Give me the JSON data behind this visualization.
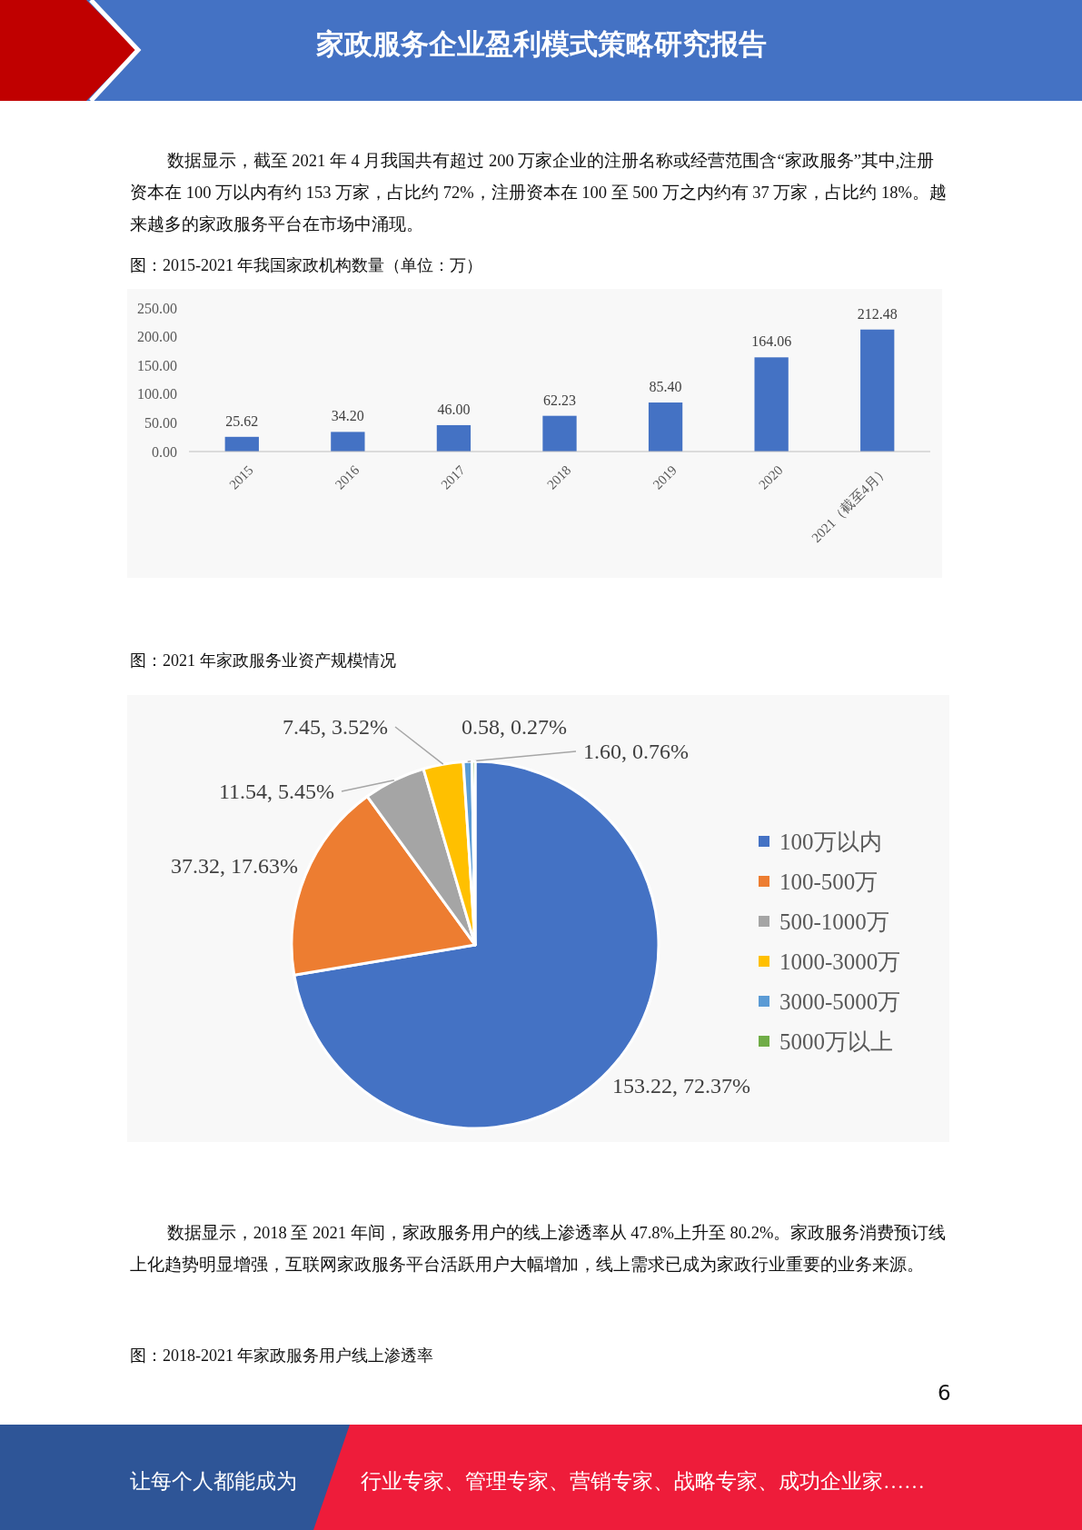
{
  "chart_data": [
    {
      "type": "bar",
      "title": "图：2015-2021 年我国家政机构数量（单位：万）",
      "annotations": [
        "家政服务企业盈利模式策略研究报告",
        "数据显示，截至 2021 年 4 月我国共有超过 200 万家企业的注册名称或经营范围含“家政服务”其中,注册资本在 100 万以内有约 153 万家，占比约 72%，注册资本在 100 至 500 万之内约有 37 万家，占比约 18%。越来越多的家政服务平台在市场中涌现。"
      ],
      "categories": [
        "2015",
        "2016",
        "2017",
        "2018",
        "2019",
        "2020",
        "2021（截至4月）"
      ],
      "values": [
        25.62,
        34.2,
        46.0,
        62.23,
        85.4,
        164.06,
        212.48
      ],
      "color": "#4472c4",
      "value_labels": [
        "25.62",
        "34.20",
        "46.00",
        "62.23",
        "85.40",
        "164.06",
        "212.48"
      ],
      "ylim": [
        0,
        250
      ],
      "yticks": [
        {
          "value": 0,
          "label": "0.00"
        },
        {
          "value": 50,
          "label": "50.00"
        },
        {
          "value": 100,
          "label": "100.00"
        },
        {
          "value": 150,
          "label": "150.00"
        },
        {
          "value": 200,
          "label": "200.00"
        },
        {
          "value": 250,
          "label": "250.00"
        }
      ]
    },
    {
      "type": "pie",
      "title": "图：2021 年家政服务业资产规模情况",
      "annotations": [
        "数据显示，2018 至 2021 年间，家政服务用户的线上渗透率从 47.8%上升至 80.2%。家政服务消费预订线上化趋势明显增强，互联网家政服务平台活跃用户大幅增加，线上需求已成为家政行业重要的业务来源。",
        "图：2018-2021 年家政服务用户线上渗透率",
        "6",
        "让每个人都能成为",
        "行业专家、管理专家、营销专家、战略专家、成功企业家……"
      ],
      "categories": [
        "100万以内",
        "100-500万",
        "500-1000万",
        "1000-3000万",
        "3000-5000万",
        "5000万以上"
      ],
      "values": [
        153.22,
        37.32,
        11.54,
        7.45,
        1.6,
        0.58
      ],
      "value_labels": [
        "153.22, 72.37%",
        "37.32, 17.63%",
        "11.54, 5.45%",
        "7.45, 3.52%",
        "1.60, 0.76%",
        "0.58, 0.27%"
      ],
      "colors": [
        "#4472c4",
        "#ed7d31",
        "#a5a5a5",
        "#ffc000",
        "#5b9bd5",
        "#70ad47"
      ],
      "legend": "right"
    }
  ]
}
